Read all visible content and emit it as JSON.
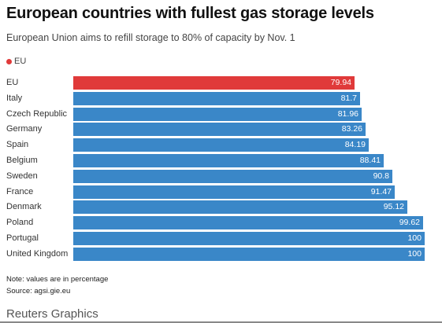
{
  "header": {
    "title": "European countries with fullest gas storage levels",
    "subtitle": "European Union aims to refill storage to 80% of capacity by Nov. 1"
  },
  "legend": {
    "label": "EU",
    "color": "#e03a3a"
  },
  "colors": {
    "highlight": "#e03a3a",
    "default": "#3a87c8"
  },
  "chart_data": {
    "type": "bar",
    "orientation": "horizontal",
    "categories": [
      "EU",
      "Italy",
      "Czech Republic",
      "Germany",
      "Spain",
      "Belgium",
      "Sweden",
      "France",
      "Denmark",
      "Poland",
      "Portugal",
      "United Kingdom"
    ],
    "values": [
      79.94,
      81.7,
      81.96,
      83.26,
      84.19,
      88.41,
      90.8,
      91.47,
      95.12,
      99.62,
      100,
      100
    ],
    "value_labels": [
      "79.94",
      "81.7",
      "81.96",
      "83.26",
      "84.19",
      "88.41",
      "90.8",
      "91.47",
      "95.12",
      "99.62",
      "100",
      "100"
    ],
    "highlight_category": "EU",
    "xlim": [
      0,
      100
    ],
    "grid": false,
    "legend_position": "top-left"
  },
  "footer": {
    "note": "Note: values are in percentage",
    "source": "Source: agsi.gie.eu",
    "credit": "Reuters Graphics"
  }
}
